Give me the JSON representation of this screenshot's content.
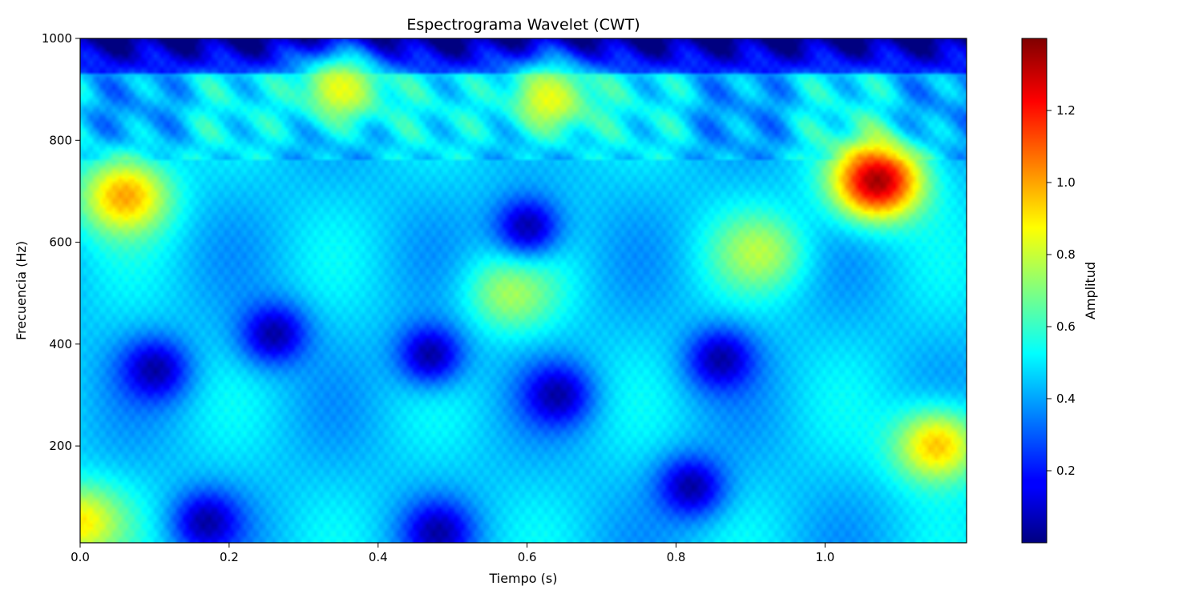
{
  "chart_data": {
    "type": "heatmap",
    "title": "Espectrograma Wavelet (CWT)",
    "xlabel": "Tiempo (s)",
    "ylabel": "Frecuencia (Hz)",
    "xlim": [
      0.0,
      1.19
    ],
    "ylim": [
      10,
      1000
    ],
    "x_ticks": [
      0.0,
      0.2,
      0.4,
      0.6,
      0.8,
      1.0
    ],
    "x_tick_labels": [
      "0.0",
      "0.2",
      "0.4",
      "0.6",
      "0.8",
      "1.0"
    ],
    "y_ticks": [
      200,
      400,
      600,
      800,
      1000
    ],
    "y_tick_labels": [
      "200",
      "400",
      "600",
      "800",
      "1000"
    ],
    "colormap": "jet",
    "colorbar": {
      "label": "Amplitud",
      "range": [
        0.0,
        1.4
      ],
      "ticks": [
        0.2,
        0.4,
        0.6,
        0.8,
        1.0,
        1.2
      ],
      "tick_labels": [
        "0.2",
        "0.4",
        "0.6",
        "0.8",
        "1.0",
        "1.2"
      ]
    },
    "features": [
      {
        "time": 0.06,
        "freq": 690,
        "amplitude": 1.0,
        "kind": "peak"
      },
      {
        "time": 1.07,
        "freq": 720,
        "amplitude": 1.35,
        "kind": "peak"
      },
      {
        "time": 1.15,
        "freq": 200,
        "amplitude": 0.95,
        "kind": "peak"
      },
      {
        "time": 0.35,
        "freq": 900,
        "amplitude": 0.85,
        "kind": "peak"
      },
      {
        "time": 0.63,
        "freq": 880,
        "amplitude": 0.85,
        "kind": "peak"
      },
      {
        "time": 0.58,
        "freq": 500,
        "amplitude": 0.75,
        "kind": "peak"
      },
      {
        "time": 0.91,
        "freq": 580,
        "amplitude": 0.78,
        "kind": "peak"
      },
      {
        "time": 0.0,
        "freq": 50,
        "amplitude": 0.9,
        "kind": "peak"
      },
      {
        "time": 0.1,
        "freq": 350,
        "amplitude": 0.05,
        "kind": "trough"
      },
      {
        "time": 0.17,
        "freq": 50,
        "amplitude": 0.05,
        "kind": "trough"
      },
      {
        "time": 0.26,
        "freq": 420,
        "amplitude": 0.05,
        "kind": "trough"
      },
      {
        "time": 0.47,
        "freq": 380,
        "amplitude": 0.05,
        "kind": "trough"
      },
      {
        "time": 0.48,
        "freq": 30,
        "amplitude": 0.05,
        "kind": "trough"
      },
      {
        "time": 0.64,
        "freq": 300,
        "amplitude": 0.05,
        "kind": "trough"
      },
      {
        "time": 0.82,
        "freq": 120,
        "amplitude": 0.05,
        "kind": "trough"
      },
      {
        "time": 0.86,
        "freq": 370,
        "amplitude": 0.05,
        "kind": "trough"
      },
      {
        "time": 0.6,
        "freq": 630,
        "amplitude": 0.05,
        "kind": "trough"
      }
    ]
  }
}
